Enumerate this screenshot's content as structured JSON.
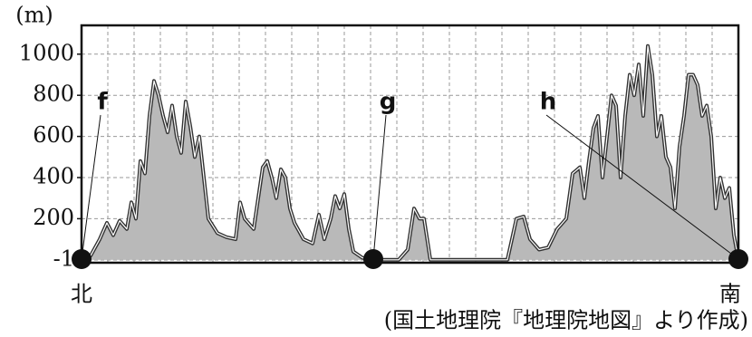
{
  "chart_data": {
    "type": "area",
    "y_label": "(m)",
    "left_label": "北",
    "right_label": "南",
    "source": "(国土地理院『地理院地図』より作成)",
    "x": [
      0,
      10,
      20,
      28,
      35,
      42,
      50,
      55,
      60,
      65,
      70,
      75,
      80,
      85,
      90,
      95,
      100,
      105,
      110,
      115,
      120,
      125,
      130,
      135,
      140,
      150,
      160,
      170,
      175,
      180,
      190,
      200,
      205,
      210,
      215,
      220,
      225,
      230,
      235,
      245,
      255,
      262,
      268,
      275,
      280,
      285,
      290,
      295,
      300,
      310,
      320,
      350,
      360,
      367,
      373,
      378,
      385,
      470,
      480,
      488,
      495,
      505,
      515,
      525,
      535,
      542,
      550,
      555,
      560,
      565,
      570,
      575,
      580,
      585,
      590,
      595,
      600,
      605,
      610,
      615,
      620,
      625,
      630,
      635,
      640,
      645,
      650,
      655,
      660,
      665,
      670,
      675,
      680,
      685,
      690,
      695,
      700,
      705,
      710,
      715,
      720,
      725
    ],
    "values": [
      0,
      20,
      100,
      180,
      120,
      190,
      150,
      280,
      200,
      480,
      420,
      700,
      870,
      800,
      700,
      620,
      750,
      600,
      520,
      770,
      650,
      500,
      600,
      400,
      200,
      130,
      110,
      100,
      280,
      200,
      150,
      450,
      480,
      400,
      300,
      440,
      400,
      250,
      180,
      100,
      80,
      220,
      100,
      200,
      310,
      250,
      320,
      150,
      40,
      10,
      0,
      0,
      50,
      250,
      200,
      200,
      0,
      0,
      200,
      210,
      100,
      50,
      60,
      150,
      200,
      420,
      450,
      300,
      480,
      640,
      700,
      400,
      600,
      800,
      750,
      400,
      700,
      900,
      800,
      950,
      700,
      1040,
      900,
      600,
      700,
      500,
      450,
      250,
      550,
      700,
      900,
      900,
      850,
      700,
      750,
      600,
      250,
      400,
      300,
      350,
      120,
      0
    ],
    "xlim": [
      0,
      725
    ],
    "ylim": [
      -14,
      1140
    ],
    "yticks": [
      -1,
      200,
      400,
      600,
      800,
      1000
    ],
    "grid": true,
    "fill": "#b9b9b9",
    "line_color": "#333333",
    "markers": [
      {
        "label": "f",
        "x": 0
      },
      {
        "label": "g",
        "x": 322
      },
      {
        "label": "h",
        "x": 725
      }
    ]
  }
}
